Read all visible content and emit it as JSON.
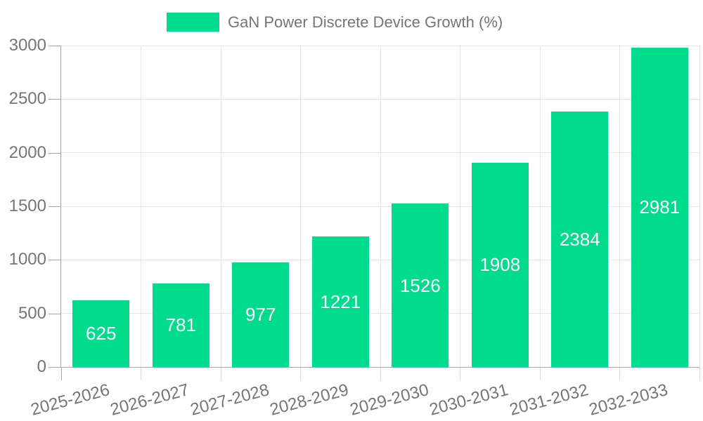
{
  "chart_data": {
    "type": "bar",
    "title": "",
    "legend": "GaN Power Discrete Device Growth (%)",
    "categories": [
      "2025-2026",
      "2026-2027",
      "2027-2028",
      "2028-2029",
      "2029-2030",
      "2030-2031",
      "2031-2032",
      "2032-2033"
    ],
    "values": [
      625,
      781,
      977,
      1221,
      1526,
      1908,
      2384,
      2981
    ],
    "xlabel": "",
    "ylabel": "",
    "ylim": [
      0,
      3000
    ],
    "yticks": [
      0,
      500,
      1000,
      1500,
      2000,
      2500,
      3000
    ],
    "grid": true,
    "legend_position": "top-center",
    "x_label_rotation_deg": -15,
    "value_labels_inside_bars": true,
    "colors": {
      "bar": "#00DB8C",
      "value_label": "#FFFFFF",
      "axis_line": "#A2A5AB",
      "y_tick": "#A2A5AB",
      "x_tick": "#D7DADF",
      "grid_line": "#E3E6EB",
      "text": "#757575",
      "background": "#FFFFFF"
    }
  }
}
